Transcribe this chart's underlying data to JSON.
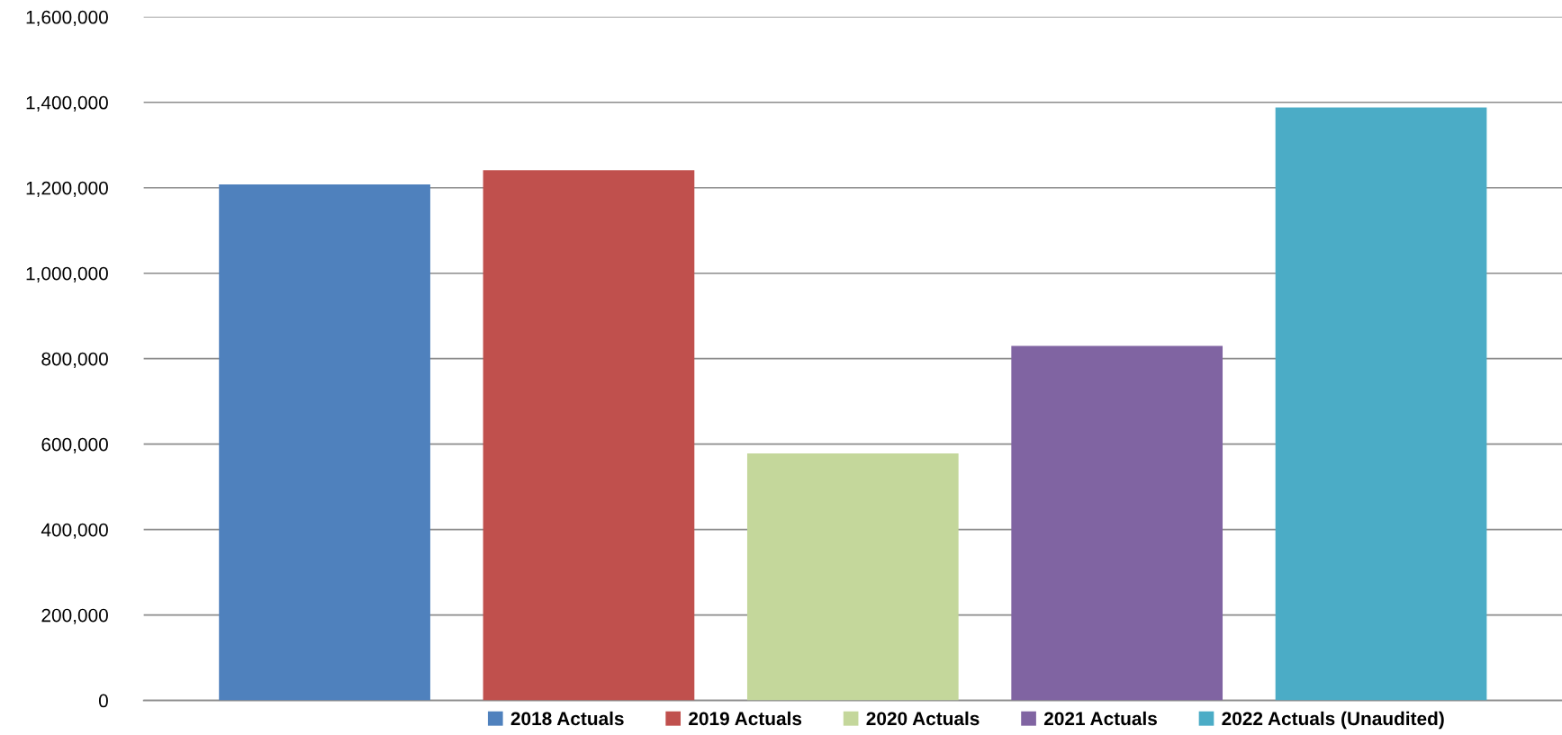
{
  "chart_data": {
    "type": "bar",
    "categories": [
      null
    ],
    "series": [
      {
        "name": "2018 Actuals",
        "color": "#4f81bd",
        "values": [
          1208000
        ]
      },
      {
        "name": "2019 Actuals",
        "color": "#c0504d",
        "values": [
          1241000
        ]
      },
      {
        "name": "2020 Actuals",
        "color": "#c4d79b",
        "values": [
          578000
        ]
      },
      {
        "name": "2021 Actuals",
        "color": "#8064a2",
        "values": [
          830000
        ]
      },
      {
        "name": "2022 Actuals (Unaudited)",
        "color": "#4bacc6",
        "values": [
          1388000
        ]
      }
    ],
    "ylim": [
      0,
      1600000
    ],
    "yticks": [
      {
        "value": 0,
        "label": "0"
      },
      {
        "value": 200000,
        "label": "200,000"
      },
      {
        "value": 400000,
        "label": "400,000"
      },
      {
        "value": 600000,
        "label": "600,000"
      },
      {
        "value": 800000,
        "label": "800,000"
      },
      {
        "value": 1000000,
        "label": "1,000,000"
      },
      {
        "value": 1200000,
        "label": "1,200,000"
      },
      {
        "value": 1400000,
        "label": "1,400,000"
      },
      {
        "value": 1600000,
        "label": "1,600,000"
      }
    ],
    "grid": "y",
    "legend": "bottom"
  }
}
